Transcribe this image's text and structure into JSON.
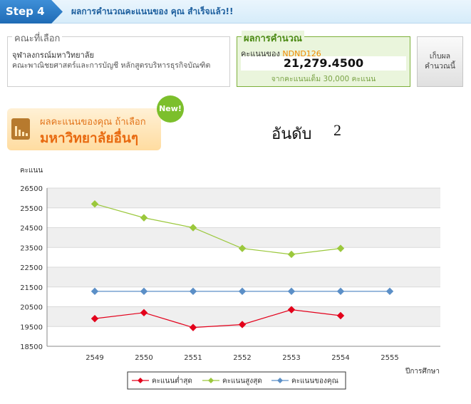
{
  "step": {
    "badge": "Step 4",
    "title": "ผลการคำนวณคะแนนของ คุณ สำเร็จแล้ว!!"
  },
  "faculty": {
    "legend": "คณะที่เลือก",
    "university": "จุฬาลงกรณ์มหาวิทยาลัย",
    "program": "คณะพาณิชยศาสตร์และการบัญชี หลักสูตรบริหารธุรกิจบัณฑิต"
  },
  "result": {
    "legend": "ผลการคำนวณ",
    "label_prefix": "คะแนนของ",
    "code": "NDND126",
    "score": "21,279.4500",
    "full_score": "จากคะแนนเต็ม 30,000 คะแนน"
  },
  "save_button": {
    "line1": "เก็บผล",
    "line2": "คำนวณนี้"
  },
  "promo": {
    "line1": "ผลคะแนนของคุณ ถ้าเลือก",
    "line2": "มหาวิทยาลัยอื่นๆ",
    "new_badge": "New!"
  },
  "rank": {
    "label": "อันดับ",
    "value": "2"
  },
  "chart_data": {
    "type": "line",
    "ylabel": "คะแนน",
    "xlabel": "ปีการศึกษา",
    "ylim": [
      18500,
      26500
    ],
    "yticks": [
      18500,
      19500,
      20500,
      21500,
      22500,
      23500,
      24500,
      25500,
      26500
    ],
    "categories": [
      "2549",
      "2550",
      "2551",
      "2552",
      "2553",
      "2554",
      "2555"
    ],
    "grid": true,
    "legend_position": "bottom",
    "series": [
      {
        "name": "คะแนนต่ำสุด",
        "color": "#e3001b",
        "values": [
          19900,
          20200,
          19450,
          19600,
          20350,
          20050,
          null
        ]
      },
      {
        "name": "คะแนนสูงสุด",
        "color": "#9bc83c",
        "values": [
          25700,
          25000,
          24500,
          23450,
          23150,
          23450,
          null
        ]
      },
      {
        "name": "คะแนนของคุณ",
        "color": "#5b8fc7",
        "values": [
          21280,
          21280,
          21280,
          21280,
          21280,
          21280,
          21280
        ]
      }
    ]
  }
}
